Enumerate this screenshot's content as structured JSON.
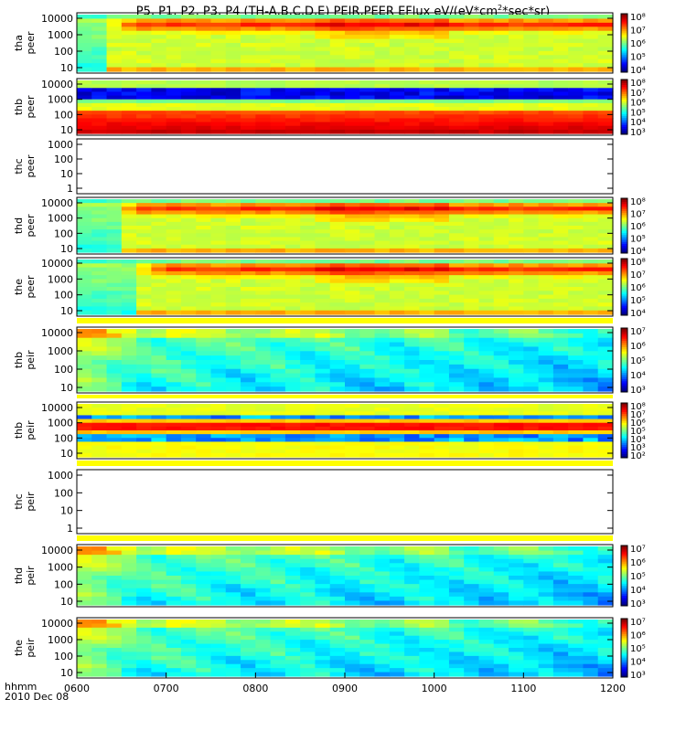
{
  "title_parts": {
    "prefix": "P5, P1, P2, P3, P4 (TH-A,B,C,D,E) PEIR,PEER EFlux eV/(eV*cm",
    "sup": "2",
    "suffix": "*sec*sr)"
  },
  "footer": {
    "line1": "hhmm",
    "line2": "2010 Dec 08"
  },
  "chart_data": {
    "type": "heatmap",
    "x_ticks": [
      "0600",
      "0700",
      "0800",
      "0900",
      "1000",
      "1100",
      "1200"
    ],
    "xlim": [
      "0600",
      "1200"
    ],
    "panels": [
      {
        "ylabel_l1": "tha",
        "ylabel_l2": "peer",
        "yticks": [
          "10",
          "100",
          "1000",
          "10000"
        ],
        "colorbar": [
          "10⁴",
          "10⁵",
          "10⁶",
          "10⁷",
          "10⁸"
        ],
        "pattern": "electron",
        "onset": 0.06
      },
      {
        "ylabel_l1": "thb",
        "ylabel_l2": "peer",
        "yticks": [
          "10",
          "100",
          "1000",
          "10000"
        ],
        "colorbar": [
          "10³",
          "10⁴",
          "10⁵",
          "10⁶",
          "10⁷",
          "10⁸"
        ],
        "pattern": "bands_e"
      },
      {
        "ylabel_l1": "thc",
        "ylabel_l2": "peer",
        "yticks": [
          "1",
          "10",
          "100",
          "1000"
        ],
        "colorbar": [],
        "pattern": "empty"
      },
      {
        "ylabel_l1": "thd",
        "ylabel_l2": "peer",
        "yticks": [
          "10",
          "100",
          "1000",
          "10000"
        ],
        "colorbar": [
          "10⁴",
          "10⁵",
          "10⁶",
          "10⁷",
          "10⁸"
        ],
        "pattern": "electron",
        "onset": 0.07
      },
      {
        "ylabel_l1": "the",
        "ylabel_l2": "peer",
        "yticks": [
          "10",
          "100",
          "1000",
          "10000"
        ],
        "colorbar": [
          "10⁴",
          "10⁵",
          "10⁶",
          "10⁷",
          "10⁸"
        ],
        "pattern": "electron",
        "onset": 0.11
      },
      {
        "ylabel_l1": "thb",
        "ylabel_l2": "peir",
        "yticks": [
          "10",
          "100",
          "1000",
          "10000"
        ],
        "colorbar": [
          "10³",
          "10⁴",
          "10⁵",
          "10⁶",
          "10⁷"
        ],
        "pattern": "ion"
      },
      {
        "ylabel_l1": "thb",
        "ylabel_l2": "peir",
        "yticks": [
          "10",
          "100",
          "1000",
          "10000"
        ],
        "colorbar": [
          "10²",
          "10³",
          "10⁴",
          "10⁵",
          "10⁶",
          "10⁷",
          "10⁸"
        ],
        "pattern": "bands_i"
      },
      {
        "ylabel_l1": "thc",
        "ylabel_l2": "peir",
        "yticks": [
          "1",
          "10",
          "100",
          "1000"
        ],
        "colorbar": [],
        "pattern": "empty"
      },
      {
        "ylabel_l1": "thd",
        "ylabel_l2": "peir",
        "yticks": [
          "10",
          "100",
          "1000",
          "10000"
        ],
        "colorbar": [
          "10³",
          "10⁴",
          "10⁵",
          "10⁶",
          "10⁷"
        ],
        "pattern": "ion"
      },
      {
        "ylabel_l1": "the",
        "ylabel_l2": "peir",
        "yticks": [
          "10",
          "100",
          "1000",
          "10000"
        ],
        "colorbar": [
          "10³",
          "10⁴",
          "10⁵",
          "10⁶",
          "10⁷"
        ],
        "pattern": "ion"
      }
    ]
  }
}
